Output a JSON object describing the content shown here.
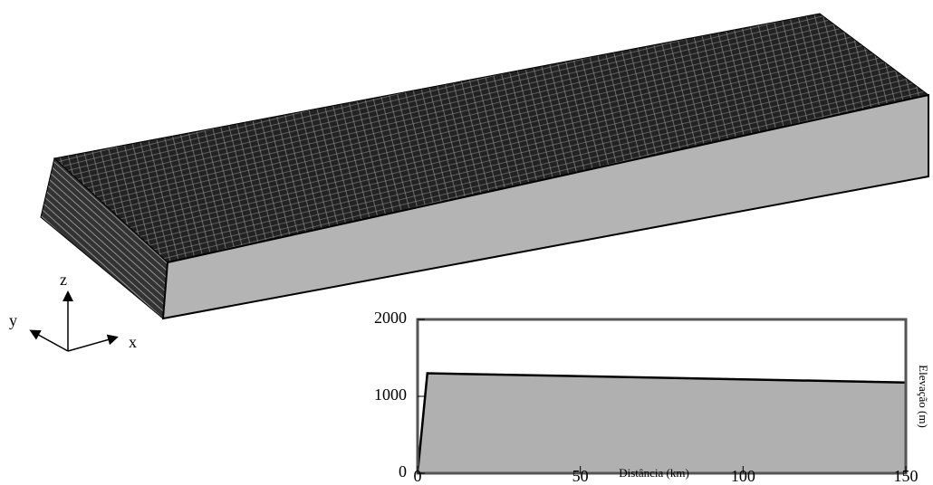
{
  "chart_data": {
    "type": "area",
    "x": [
      0,
      3,
      150
    ],
    "values": [
      0,
      1300,
      1180
    ],
    "xlim": [
      0,
      150
    ],
    "ylim": [
      0,
      2000
    ],
    "xticks": [
      0,
      50,
      100,
      150
    ],
    "yticks": [
      0,
      1000,
      2000
    ],
    "xlabel": "Distância (km)",
    "ylabel": "Elevação (m)",
    "color": "#b0b0b0"
  },
  "axes_labels": {
    "x": "x",
    "y": "y",
    "z": "z"
  }
}
